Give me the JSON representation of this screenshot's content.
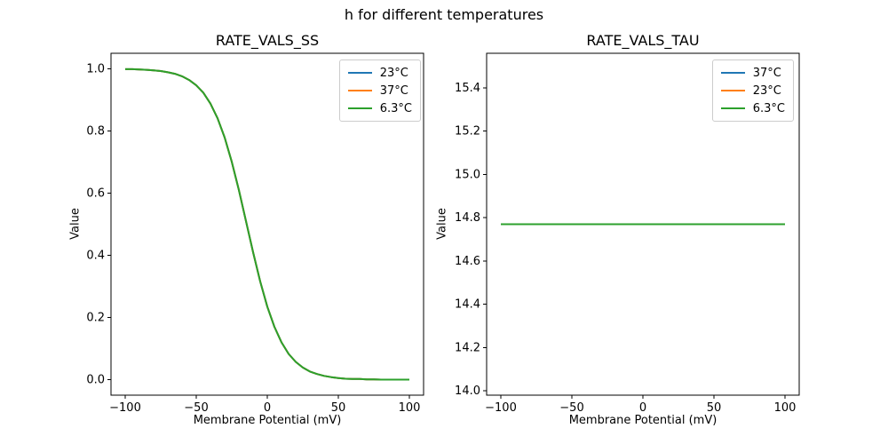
{
  "figure": {
    "suptitle": "h for different temperatures",
    "background": "#ffffff"
  },
  "chart_data": [
    {
      "type": "line",
      "title": "RATE_VALS_SS",
      "xlabel": "Membrane Potential (mV)",
      "ylabel": "Value",
      "xlim": [
        -110,
        110
      ],
      "ylim": [
        -0.05,
        1.05
      ],
      "xticks": [
        -100,
        -50,
        0,
        50,
        100
      ],
      "xtick_labels": [
        "−100",
        "−50",
        "0",
        "50",
        "100"
      ],
      "yticks": [
        0.0,
        0.2,
        0.4,
        0.6,
        0.8,
        1.0
      ],
      "ytick_labels": [
        "0.0",
        "0.2",
        "0.4",
        "0.6",
        "0.8",
        "1.0"
      ],
      "grid": false,
      "legend_position": "upper right",
      "note": "all three temperature curves overlap exactly; green (drawn last) is visible",
      "x": [
        -100,
        -95,
        -90,
        -85,
        -80,
        -75,
        -70,
        -65,
        -60,
        -55,
        -50,
        -45,
        -40,
        -35,
        -30,
        -25,
        -20,
        -15,
        -10,
        -5,
        0,
        5,
        10,
        15,
        20,
        25,
        30,
        35,
        40,
        45,
        50,
        55,
        60,
        65,
        70,
        75,
        80,
        85,
        90,
        95,
        100
      ],
      "series": [
        {
          "name": "23°C",
          "color": "#1f77b4",
          "values": [
            0.999,
            0.999,
            0.998,
            0.997,
            0.995,
            0.993,
            0.989,
            0.984,
            0.976,
            0.964,
            0.947,
            0.923,
            0.888,
            0.841,
            0.779,
            0.701,
            0.61,
            0.51,
            0.41,
            0.316,
            0.235,
            0.17,
            0.12,
            0.083,
            0.057,
            0.039,
            0.026,
            0.018,
            0.012,
            0.008,
            0.005,
            0.003,
            0.002,
            0.002,
            0.001,
            0.001,
            0.0,
            0.0,
            0.0,
            0.0,
            0.0
          ]
        },
        {
          "name": "37°C",
          "color": "#ff7f0e",
          "values": [
            0.999,
            0.999,
            0.998,
            0.997,
            0.995,
            0.993,
            0.989,
            0.984,
            0.976,
            0.964,
            0.947,
            0.923,
            0.888,
            0.841,
            0.779,
            0.701,
            0.61,
            0.51,
            0.41,
            0.316,
            0.235,
            0.17,
            0.12,
            0.083,
            0.057,
            0.039,
            0.026,
            0.018,
            0.012,
            0.008,
            0.005,
            0.003,
            0.002,
            0.002,
            0.001,
            0.001,
            0.0,
            0.0,
            0.0,
            0.0,
            0.0
          ]
        },
        {
          "name": "6.3°C",
          "color": "#2ca02c",
          "values": [
            0.999,
            0.999,
            0.998,
            0.997,
            0.995,
            0.993,
            0.989,
            0.984,
            0.976,
            0.964,
            0.947,
            0.923,
            0.888,
            0.841,
            0.779,
            0.701,
            0.61,
            0.51,
            0.41,
            0.316,
            0.235,
            0.17,
            0.12,
            0.083,
            0.057,
            0.039,
            0.026,
            0.018,
            0.012,
            0.008,
            0.005,
            0.003,
            0.002,
            0.002,
            0.001,
            0.001,
            0.0,
            0.0,
            0.0,
            0.0,
            0.0
          ]
        }
      ]
    },
    {
      "type": "line",
      "title": "RATE_VALS_TAU",
      "xlabel": "Membrane Potential (mV)",
      "ylabel": "Value",
      "xlim": [
        -110,
        110
      ],
      "ylim": [
        13.98,
        15.56
      ],
      "xticks": [
        -100,
        -50,
        0,
        50,
        100
      ],
      "xtick_labels": [
        "−100",
        "−50",
        "0",
        "50",
        "100"
      ],
      "yticks": [
        14.0,
        14.2,
        14.4,
        14.6,
        14.8,
        15.0,
        15.2,
        15.4
      ],
      "ytick_labels": [
        "14.0",
        "14.2",
        "14.4",
        "14.6",
        "14.8",
        "15.0",
        "15.2",
        "15.4"
      ],
      "grid": false,
      "legend_position": "upper right",
      "note": "all three temperature curves are the same flat line at 14.77; green visible",
      "x": [
        -100,
        100
      ],
      "series": [
        {
          "name": "37°C",
          "color": "#1f77b4",
          "values": [
            14.77,
            14.77
          ]
        },
        {
          "name": "23°C",
          "color": "#ff7f0e",
          "values": [
            14.77,
            14.77
          ]
        },
        {
          "name": "6.3°C",
          "color": "#2ca02c",
          "values": [
            14.77,
            14.77
          ]
        }
      ]
    }
  ]
}
